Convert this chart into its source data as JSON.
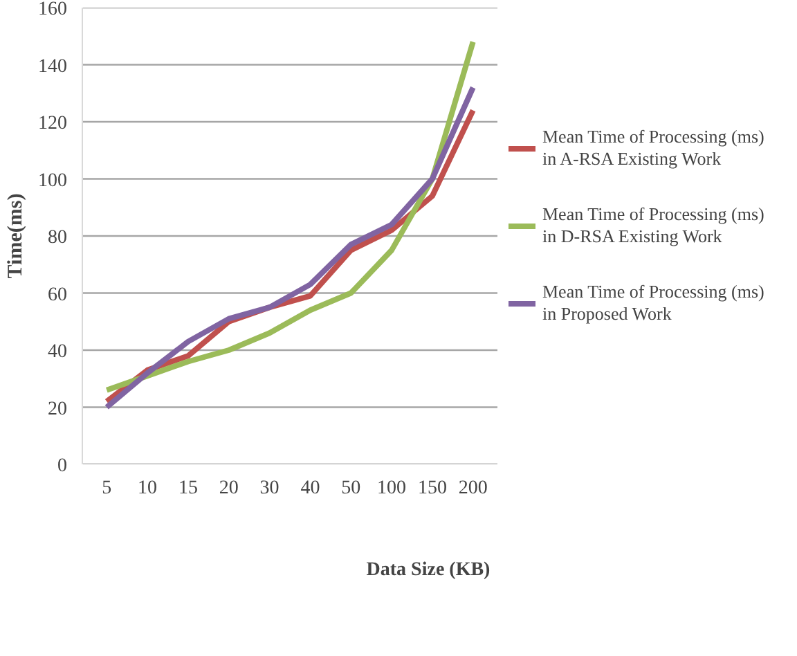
{
  "chart_data": {
    "type": "line",
    "xlabel": "Data Size (KB)",
    "ylabel": "Time(ms)",
    "categories": [
      "5",
      "10",
      "15",
      "20",
      "30",
      "40",
      "50",
      "100",
      "150",
      "200"
    ],
    "ylim": [
      0,
      160
    ],
    "yticks": [
      0,
      20,
      40,
      60,
      80,
      100,
      120,
      140,
      160
    ],
    "grid": "y",
    "legend": "right",
    "line_style": "solid",
    "marker": "none",
    "series": [
      {
        "name": "Mean Time of Processing (ms) in A-RSA Existing Work",
        "color": "#c0504d",
        "values": [
          22,
          33,
          38,
          50,
          55,
          59,
          75,
          82,
          94,
          124
        ]
      },
      {
        "name": "Mean Time of Processing (ms) in D-RSA Existing Work",
        "color": "#9bbb59",
        "values": [
          26,
          31,
          36,
          40,
          46,
          54,
          60,
          75,
          100,
          148
        ]
      },
      {
        "name": "Mean Time of Processing (ms) in Proposed Work",
        "color": "#8064a2",
        "values": [
          20,
          32,
          43,
          51,
          55,
          63,
          77,
          84,
          100,
          132
        ]
      }
    ]
  }
}
